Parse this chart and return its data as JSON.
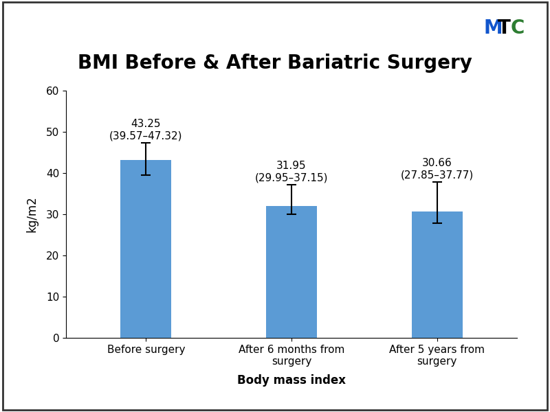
{
  "title": "BMI Before & After Bariatric Surgery",
  "xlabel": "Body mass index",
  "ylabel": "kg/m2",
  "categories": [
    "Before surgery",
    "After 6 months from\nsurgery",
    "After 5 years from\nsurgery"
  ],
  "values": [
    43.25,
    31.95,
    30.66
  ],
  "error_lower": [
    3.68,
    2.0,
    2.81
  ],
  "error_upper": [
    4.07,
    5.2,
    7.11
  ],
  "annotations": [
    "43.25\n(39.57–47.32)",
    "31.95\n(29.95–37.15)",
    "30.66\n(27.85–37.77)"
  ],
  "bar_color": "#5B9BD5",
  "ylim": [
    0,
    60
  ],
  "yticks": [
    0,
    10,
    20,
    30,
    40,
    50,
    60
  ],
  "title_fontsize": 20,
  "axis_label_fontsize": 12,
  "tick_fontsize": 11,
  "annotation_fontsize": 11,
  "bar_width": 0.35,
  "background_color": "#FFFFFF",
  "border_color": "#333333",
  "mtc_M_color": "#1155CC",
  "mtc_T_color": "#000000",
  "mtc_C_color": "#2D7D32",
  "mtc_fontsize": 20
}
